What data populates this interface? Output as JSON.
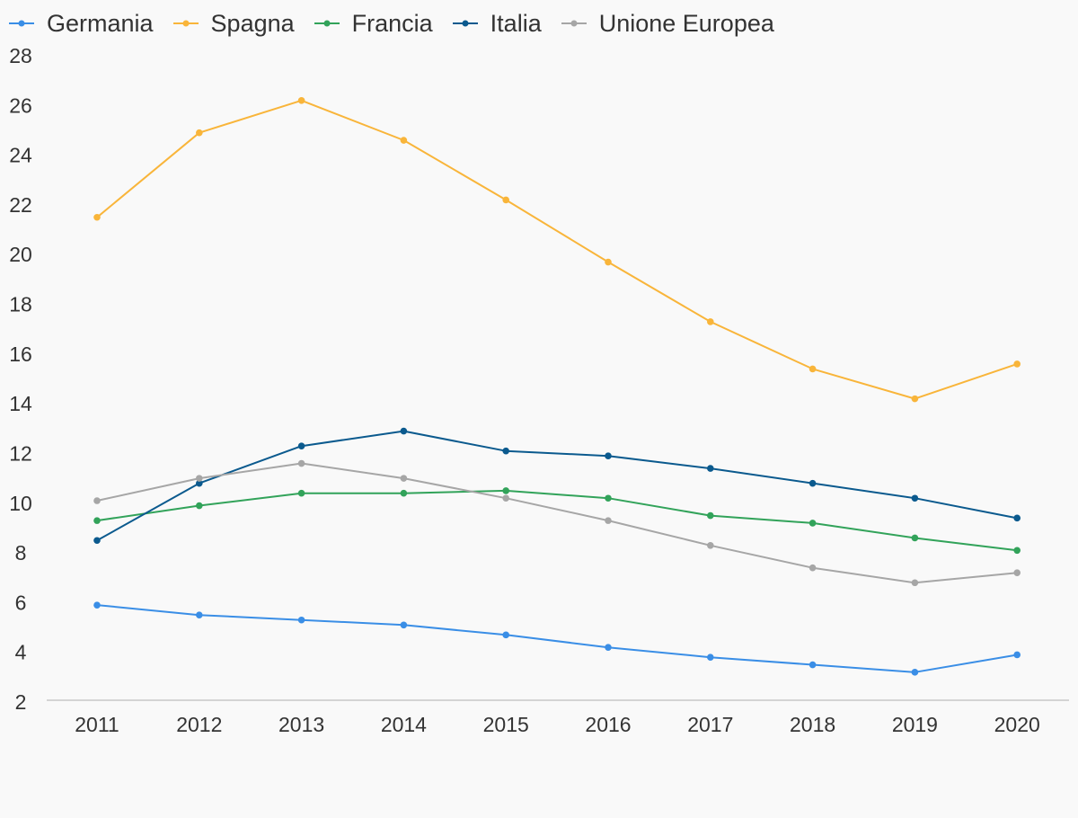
{
  "chart_data": {
    "type": "line",
    "title": "",
    "xlabel": "",
    "ylabel": "",
    "categories": [
      "2011",
      "2012",
      "2013",
      "2014",
      "2015",
      "2016",
      "2017",
      "2018",
      "2019",
      "2020"
    ],
    "ylim": [
      2,
      28
    ],
    "yticks": [
      "2",
      "4",
      "6",
      "8",
      "10",
      "12",
      "14",
      "16",
      "18",
      "20",
      "22",
      "24",
      "26",
      "28"
    ],
    "grid": false,
    "legend_position": "top-left",
    "series": [
      {
        "name": "Germania",
        "color": "#3a8ee6",
        "values": [
          5.9,
          5.5,
          5.3,
          5.1,
          4.7,
          4.2,
          3.8,
          3.5,
          3.2,
          3.9
        ]
      },
      {
        "name": "Spagna",
        "color": "#f9b53a",
        "values": [
          21.5,
          24.9,
          26.2,
          24.6,
          22.2,
          19.7,
          17.3,
          15.4,
          14.2,
          15.6
        ]
      },
      {
        "name": "Francia",
        "color": "#32a35a",
        "values": [
          9.3,
          9.9,
          10.4,
          10.4,
          10.5,
          10.2,
          9.5,
          9.2,
          8.6,
          8.1
        ]
      },
      {
        "name": "Italia",
        "color": "#0b5a8e",
        "values": [
          8.5,
          10.8,
          12.3,
          12.9,
          12.1,
          11.9,
          11.4,
          10.8,
          10.2,
          9.4
        ]
      },
      {
        "name": "Unione Europea",
        "color": "#a6a6a6",
        "values": [
          10.1,
          11.0,
          11.6,
          11.0,
          10.2,
          9.3,
          8.3,
          7.4,
          6.8,
          7.2
        ]
      }
    ]
  }
}
